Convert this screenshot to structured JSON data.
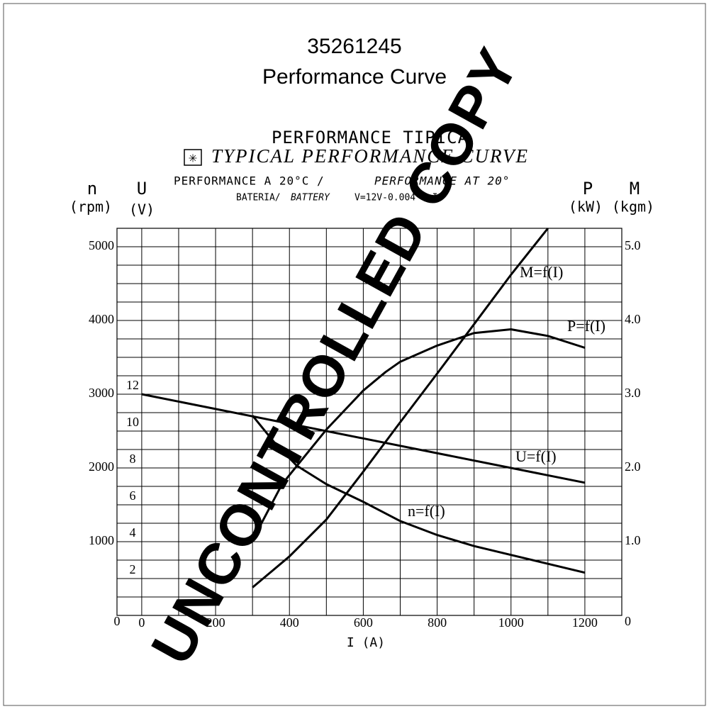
{
  "chart_data": {
    "type": "line",
    "title": "35261245",
    "subtitle": "Performance Curve",
    "annotations": [
      "PERFORMANCE TIPICA",
      "TYPICAL PERFORMANCE CURVE",
      "PERFORMANCE A 20°C /",
      "PERFORMANCE AT 20°",
      "BATERIA/",
      "BATTERY",
      "V=12V-0.004 * I",
      "UNCONTROLLED COPY"
    ],
    "xlabel": "I (A)",
    "y_axis_label": {
      "symbol": "n",
      "unit": "(rpm)"
    },
    "y2_axis_label": {
      "symbol": "U",
      "unit": "(V)"
    },
    "y3_axis_labels": [
      {
        "symbol": "P",
        "unit": "(kW)"
      },
      {
        "symbol": "M",
        "unit": "(kgm)"
      }
    ],
    "xlim": [
      -67,
      1300
    ],
    "xticks": [
      0,
      200,
      400,
      600,
      800,
      1000,
      1200
    ],
    "xgrid": [
      0,
      100,
      200,
      300,
      400,
      500,
      600,
      700,
      800,
      900,
      1000,
      1100,
      1200
    ],
    "ylim": [
      0,
      5250
    ],
    "yticks": [
      0,
      1000,
      2000,
      3000,
      4000,
      5000
    ],
    "ygrid": [
      250,
      500,
      750,
      1000,
      1250,
      1500,
      1750,
      2000,
      2250,
      2500,
      2750,
      3000,
      3250,
      3500,
      3750,
      4000,
      4250,
      4500,
      4750,
      5000
    ],
    "y2lim": [
      0,
      21
    ],
    "y2ticks": [
      2,
      4,
      6,
      8,
      10,
      12
    ],
    "y3lim": [
      0,
      5.25
    ],
    "y3ticks": [
      0,
      {
        "value": 1,
        "label": "1.0"
      },
      {
        "value": 2,
        "label": "2.0"
      },
      {
        "value": 3,
        "label": "3.0"
      },
      {
        "value": 4,
        "label": "4.0"
      },
      {
        "value": 5,
        "label": "5.0"
      }
    ],
    "grid": true,
    "series": [
      {
        "name": "M=f(I)",
        "axis": "y3",
        "color": "#000000",
        "x": [
          300,
          400,
          500,
          600,
          700,
          800,
          900,
          1000,
          1100
        ],
        "values": [
          0.38,
          0.8,
          1.3,
          1.95,
          2.62,
          3.28,
          3.95,
          4.62,
          5.25
        ]
      },
      {
        "name": "P=f(I)",
        "axis": "y3",
        "color": "#000000",
        "x": [
          300,
          380,
          500,
          600,
          660,
          700,
          800,
          900,
          1000,
          1100,
          1200
        ],
        "values": [
          1.02,
          1.78,
          2.52,
          3.05,
          3.3,
          3.44,
          3.66,
          3.83,
          3.88,
          3.79,
          3.63
        ]
      },
      {
        "name": "U=f(I)",
        "axis": "y2",
        "color": "#000000",
        "x": [
          0,
          1200
        ],
        "values": [
          12,
          7.2
        ]
      },
      {
        "name": "n=f(I)",
        "axis": "y",
        "color": "#000000",
        "x": [
          300,
          360,
          420,
          500,
          600,
          700,
          800,
          900,
          1000,
          1100,
          1200
        ],
        "values": [
          2710,
          2340,
          2030,
          1780,
          1540,
          1280,
          1090,
          940,
          820,
          700,
          580
        ]
      }
    ]
  }
}
